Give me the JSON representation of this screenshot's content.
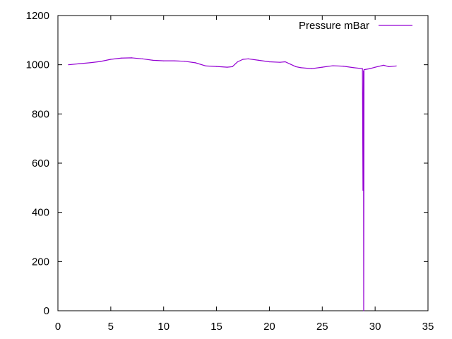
{
  "chart_data": {
    "type": "line",
    "title": "",
    "xlabel": "",
    "ylabel": "",
    "xlim": [
      0,
      35
    ],
    "ylim": [
      0,
      1200
    ],
    "xticks": [
      0,
      5,
      10,
      15,
      20,
      25,
      30,
      35
    ],
    "yticks": [
      0,
      200,
      400,
      600,
      800,
      1000,
      1200
    ],
    "grid": false,
    "legend_position": "top-right",
    "series": [
      {
        "name": "Pressure mBar",
        "color": "#9400d3",
        "points": [
          [
            1.0,
            1000
          ],
          [
            2.0,
            1004
          ],
          [
            3.0,
            1008
          ],
          [
            4.0,
            1013
          ],
          [
            5.0,
            1022
          ],
          [
            6.0,
            1027
          ],
          [
            7.0,
            1028
          ],
          [
            8.0,
            1024
          ],
          [
            9.0,
            1018
          ],
          [
            10.0,
            1016
          ],
          [
            11.0,
            1016
          ],
          [
            12.0,
            1014
          ],
          [
            13.0,
            1008
          ],
          [
            14.0,
            995
          ],
          [
            15.0,
            993
          ],
          [
            16.0,
            990
          ],
          [
            16.5,
            992
          ],
          [
            17.0,
            1012
          ],
          [
            17.5,
            1022
          ],
          [
            18.0,
            1024
          ],
          [
            19.0,
            1018
          ],
          [
            20.0,
            1012
          ],
          [
            21.0,
            1010
          ],
          [
            21.5,
            1012
          ],
          [
            22.0,
            1002
          ],
          [
            22.5,
            992
          ],
          [
            23.0,
            988
          ],
          [
            24.0,
            984
          ],
          [
            25.0,
            990
          ],
          [
            26.0,
            996
          ],
          [
            27.0,
            994
          ],
          [
            28.0,
            988
          ],
          [
            28.8,
            984
          ],
          [
            28.85,
            490
          ],
          [
            28.9,
            975
          ],
          [
            28.92,
            0
          ],
          [
            28.95,
            980
          ],
          [
            29.5,
            984
          ],
          [
            30.0,
            990
          ],
          [
            30.8,
            998
          ],
          [
            31.3,
            992
          ],
          [
            32.0,
            995
          ]
        ]
      }
    ]
  }
}
